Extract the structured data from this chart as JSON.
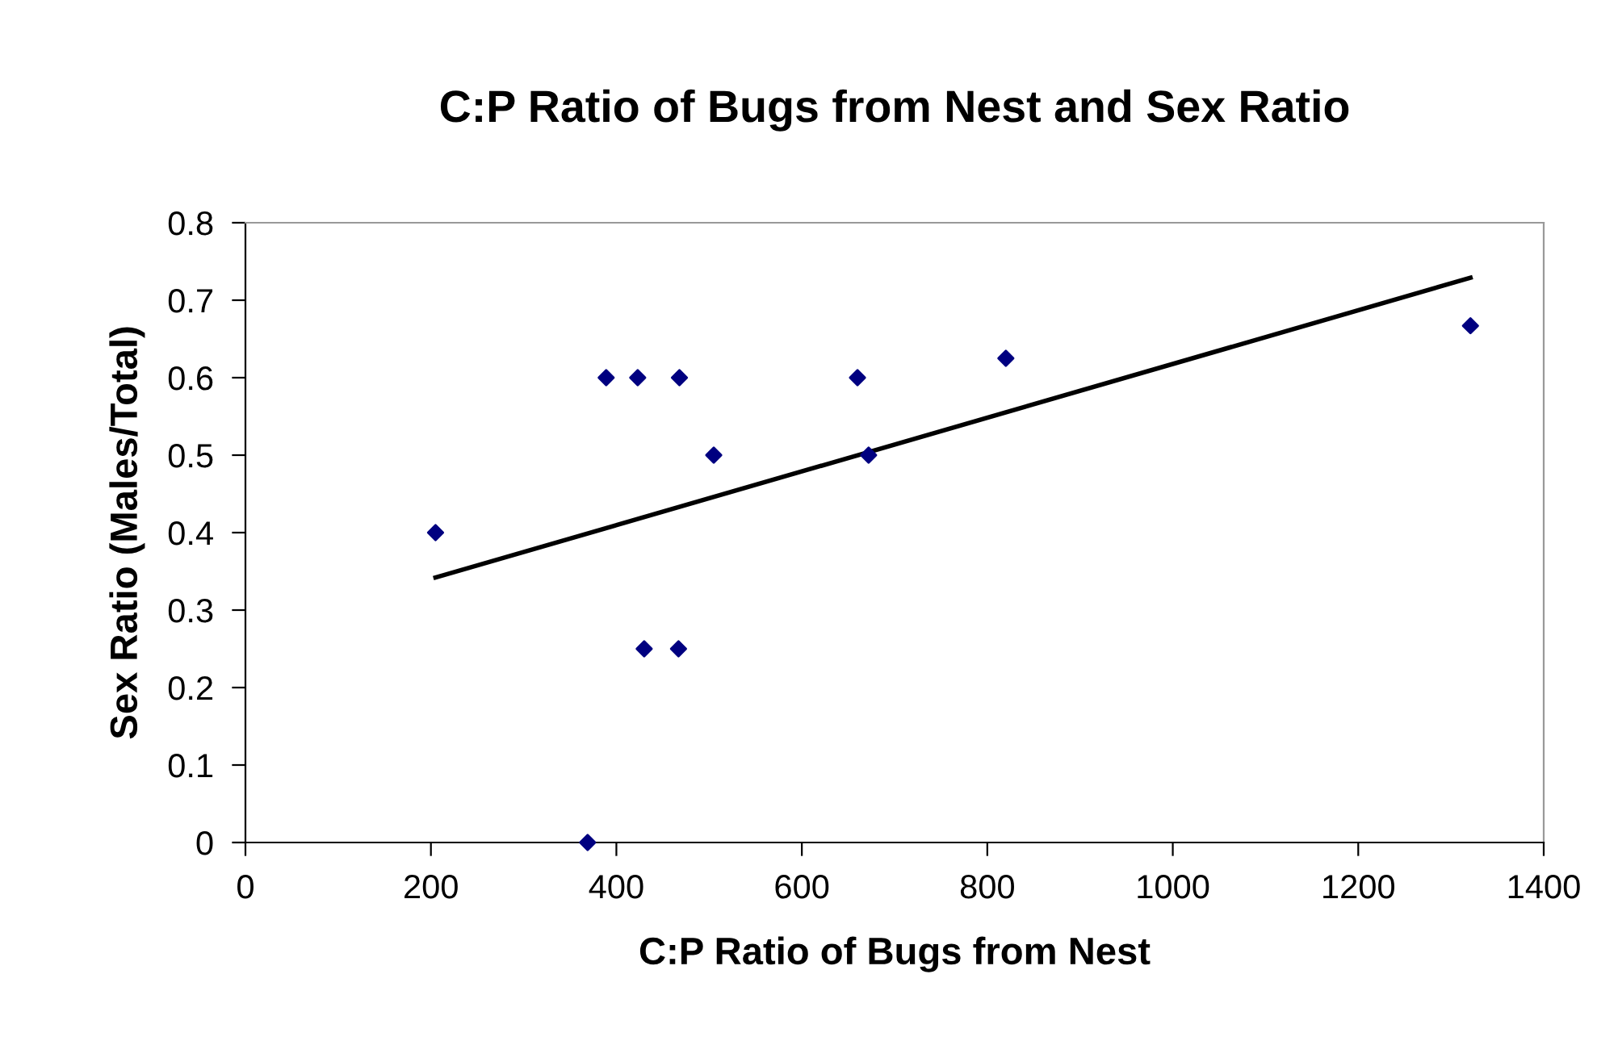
{
  "chart_data": {
    "type": "scatter",
    "title": "C:P Ratio of Bugs from Nest and Sex Ratio",
    "xlabel": "C:P Ratio of Bugs from Nest",
    "ylabel": "Sex Ratio (Males/Total)",
    "xlim": [
      0,
      1400
    ],
    "xticks": [
      0,
      200,
      400,
      600,
      800,
      1000,
      1200,
      1400
    ],
    "ylim": [
      0,
      0.8
    ],
    "yticks": [
      0,
      0.1,
      0.2,
      0.3,
      0.4,
      0.5,
      0.6,
      0.7,
      0.8
    ],
    "grid": false,
    "legend": false,
    "series": [
      {
        "color": "#000080",
        "marker": "diamond",
        "x": [
          205,
          389,
          423,
          468,
          505,
          430,
          467,
          369,
          660,
          672,
          820,
          1321
        ],
        "values": [
          0.4,
          0.6,
          0.6,
          0.6,
          0.5,
          0.25,
          0.25,
          0,
          0.6,
          0.5,
          0.625,
          0.667
        ]
      },
      {
        "type": "line",
        "color": "#000000",
        "marker": "none",
        "line_style": "solid",
        "x": [
          205,
          1321
        ],
        "values": [
          0.342,
          0.729
        ]
      }
    ]
  }
}
